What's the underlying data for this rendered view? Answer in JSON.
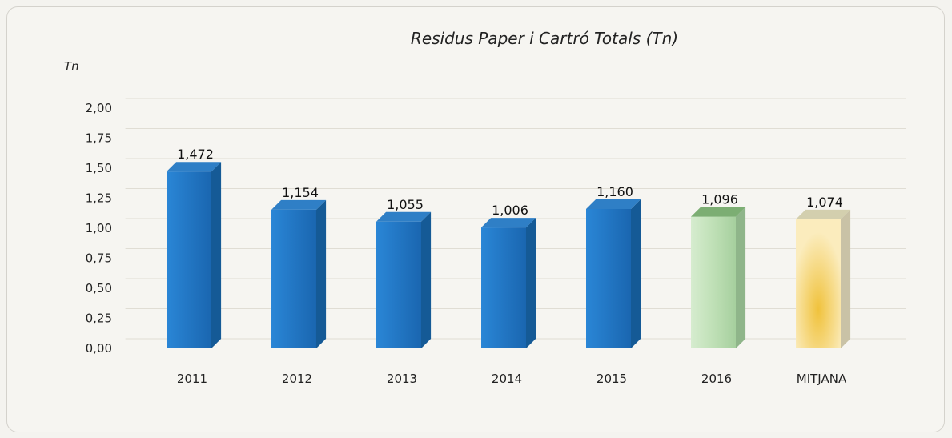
{
  "chart_data": {
    "type": "bar",
    "title": "Residus Paper i Cartró Totals  (Tn)",
    "ylabel": "Tn",
    "xlabel": "",
    "ylim": [
      0,
      2
    ],
    "yticks": [
      "0,00",
      "0,25",
      "0,50",
      "0,75",
      "1,00",
      "1,25",
      "1,50",
      "1,75",
      "2,00"
    ],
    "categories": [
      "2011",
      "2012",
      "2013",
      "2014",
      "2015",
      "2016",
      "MITJANA"
    ],
    "values": [
      1.472,
      1.154,
      1.055,
      1.006,
      1.16,
      1.096,
      1.074
    ],
    "data_labels": [
      "1,472",
      "1,154",
      "1,055",
      "1,006",
      "1,160",
      "1,096",
      "1,074"
    ],
    "bar_colors": [
      "#1e73be",
      "#1e73be",
      "#1e73be",
      "#1e73be",
      "#1e73be",
      "#b6dcb2",
      "#f3d98a"
    ],
    "grid": true,
    "legend": "none"
  }
}
